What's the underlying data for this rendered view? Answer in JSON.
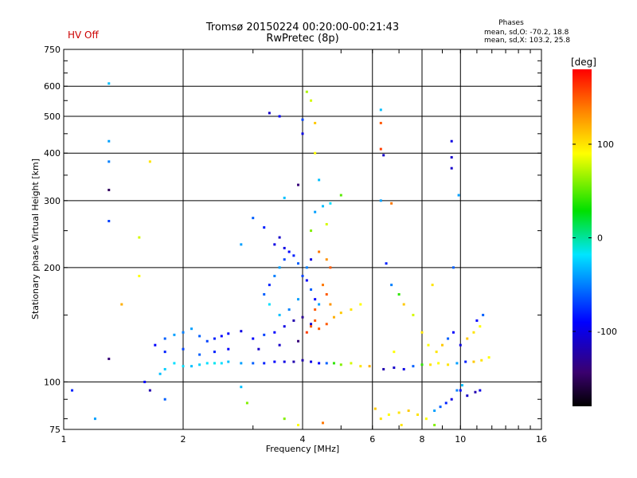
{
  "status": {
    "hv_label": "HV Off",
    "hv_color": "#cc0000"
  },
  "header": {
    "title_line1": "Tromsø 20150224 00:20:00-00:21:43",
    "title_line2": "RwPretec (8p)"
  },
  "phases_box": {
    "title": "Phases",
    "line_o": "mean, sd,O: -70.2, 18.8",
    "line_x": "mean, sd,X: 103.2, 25.8"
  },
  "chart_data": {
    "type": "scatter",
    "xlabel": "Frequency [MHz]",
    "ylabel": "Stationary phase Virtual Height [km]",
    "x_scale": "log",
    "y_scale": "log",
    "xlim": [
      1,
      16
    ],
    "ylim": [
      75,
      750
    ],
    "x_ticks": [
      1,
      2,
      4,
      6,
      8,
      10,
      16
    ],
    "y_ticks": [
      75,
      100,
      200,
      300,
      400,
      500,
      600,
      750
    ],
    "grid": true,
    "colorbar": {
      "label": "[deg]",
      "range": [
        -180,
        180
      ],
      "ticks": [
        100,
        0,
        -100
      ],
      "colormap": "rainbow"
    },
    "series": [
      {
        "points": [
          [
            1.05,
            95,
            -80
          ],
          [
            1.2,
            80,
            -40
          ],
          [
            1.3,
            115,
            -140
          ],
          [
            1.6,
            100,
            -90
          ],
          [
            1.65,
            95,
            -120
          ],
          [
            1.75,
            105,
            -30
          ],
          [
            1.8,
            108,
            -25
          ],
          [
            1.9,
            112,
            -20
          ],
          [
            2.0,
            110,
            -20
          ],
          [
            2.1,
            110,
            -30
          ],
          [
            2.2,
            111,
            -25
          ],
          [
            2.3,
            112,
            -20
          ],
          [
            2.4,
            112,
            -15
          ],
          [
            2.5,
            112,
            -20
          ],
          [
            2.6,
            113,
            -30
          ],
          [
            2.8,
            112,
            -40
          ],
          [
            3.0,
            112,
            -60
          ],
          [
            3.2,
            112,
            -80
          ],
          [
            3.4,
            113,
            -90
          ],
          [
            3.6,
            113,
            -100
          ],
          [
            3.8,
            113,
            -120
          ],
          [
            4.0,
            114,
            -120
          ],
          [
            4.2,
            113,
            -100
          ],
          [
            4.4,
            112,
            -90
          ],
          [
            4.6,
            112,
            -60
          ],
          [
            4.8,
            112,
            40
          ],
          [
            5.0,
            111,
            60
          ],
          [
            5.3,
            112,
            80
          ],
          [
            5.6,
            110,
            100
          ],
          [
            5.9,
            110,
            120
          ],
          [
            6.4,
            108,
            -120
          ],
          [
            6.8,
            109,
            -110
          ],
          [
            7.2,
            108,
            -100
          ],
          [
            7.6,
            110,
            -60
          ],
          [
            8.0,
            111,
            40
          ],
          [
            8.4,
            111,
            100
          ],
          [
            8.8,
            112,
            90
          ],
          [
            9.3,
            111,
            100
          ],
          [
            9.8,
            112,
            -40
          ],
          [
            10.3,
            113,
            -80
          ],
          [
            10.8,
            113,
            110
          ],
          [
            11.3,
            114,
            100
          ],
          [
            11.8,
            116,
            90
          ],
          [
            1.7,
            125,
            -90
          ],
          [
            1.8,
            130,
            -60
          ],
          [
            1.9,
            133,
            -40
          ],
          [
            2.0,
            135,
            -50
          ],
          [
            2.1,
            138,
            -40
          ],
          [
            2.2,
            132,
            -60
          ],
          [
            2.3,
            128,
            -70
          ],
          [
            2.4,
            130,
            -80
          ],
          [
            2.5,
            132,
            -90
          ],
          [
            2.6,
            134,
            -90
          ],
          [
            2.8,
            136,
            -100
          ],
          [
            3.0,
            130,
            -90
          ],
          [
            3.2,
            133,
            -70
          ],
          [
            3.4,
            135,
            -90
          ],
          [
            3.6,
            140,
            -100
          ],
          [
            3.8,
            145,
            -120
          ],
          [
            4.0,
            148,
            -130
          ],
          [
            4.2,
            142,
            -110
          ],
          [
            4.4,
            138,
            150
          ],
          [
            4.6,
            142,
            150
          ],
          [
            4.8,
            148,
            120
          ],
          [
            5.0,
            152,
            110
          ],
          [
            5.3,
            155,
            100
          ],
          [
            5.6,
            160,
            90
          ],
          [
            1.8,
            120,
            -80
          ],
          [
            2.0,
            122,
            -70
          ],
          [
            2.2,
            118,
            -60
          ],
          [
            2.4,
            120,
            -80
          ],
          [
            2.6,
            122,
            -90
          ],
          [
            3.1,
            122,
            -110
          ],
          [
            3.5,
            125,
            -110
          ],
          [
            3.9,
            128,
            -140
          ],
          [
            3.2,
            170,
            -60
          ],
          [
            3.3,
            180,
            -80
          ],
          [
            3.4,
            190,
            -50
          ],
          [
            3.5,
            200,
            -40
          ],
          [
            3.6,
            210,
            -70
          ],
          [
            3.7,
            220,
            -90
          ],
          [
            3.4,
            230,
            -100
          ],
          [
            3.5,
            240,
            -110
          ],
          [
            3.6,
            225,
            -100
          ],
          [
            3.8,
            215,
            -80
          ],
          [
            3.9,
            205,
            -60
          ],
          [
            4.0,
            190,
            -70
          ],
          [
            4.1,
            185,
            -90
          ],
          [
            4.2,
            175,
            -60
          ],
          [
            4.3,
            165,
            -90
          ],
          [
            4.4,
            160,
            -40
          ],
          [
            3.3,
            160,
            -20
          ],
          [
            3.5,
            150,
            -30
          ],
          [
            3.7,
            155,
            -50
          ],
          [
            3.9,
            165,
            -40
          ],
          [
            4.1,
            200,
            -50
          ],
          [
            4.2,
            210,
            -100
          ],
          [
            4.4,
            220,
            140
          ],
          [
            4.6,
            210,
            130
          ],
          [
            4.7,
            200,
            150
          ],
          [
            4.5,
            180,
            140
          ],
          [
            4.6,
            170,
            150
          ],
          [
            4.7,
            160,
            130
          ],
          [
            4.3,
            155,
            150
          ],
          [
            4.1,
            135,
            160
          ],
          [
            4.2,
            140,
            150
          ],
          [
            4.3,
            145,
            150
          ],
          [
            4.3,
            280,
            -40
          ],
          [
            4.5,
            290,
            -30
          ],
          [
            4.7,
            295,
            -20
          ],
          [
            4.2,
            250,
            60
          ],
          [
            4.6,
            260,
            80
          ],
          [
            5.0,
            310,
            50
          ],
          [
            4.3,
            400,
            90
          ],
          [
            4.3,
            480,
            110
          ],
          [
            4.2,
            550,
            80
          ],
          [
            4.1,
            580,
            70
          ],
          [
            3.3,
            510,
            -110
          ],
          [
            3.5,
            500,
            -90
          ],
          [
            4.0,
            450,
            -100
          ],
          [
            4.0,
            490,
            -70
          ],
          [
            3.9,
            330,
            -140
          ],
          [
            3.6,
            305,
            -30
          ],
          [
            4.4,
            340,
            -30
          ],
          [
            2.8,
            230,
            -40
          ],
          [
            3.2,
            255,
            -80
          ],
          [
            3.0,
            270,
            -60
          ],
          [
            1.3,
            610,
            -30
          ],
          [
            1.3,
            430,
            -40
          ],
          [
            1.3,
            380,
            -50
          ],
          [
            1.3,
            320,
            -150
          ],
          [
            1.3,
            265,
            -70
          ],
          [
            1.4,
            160,
            120
          ],
          [
            1.55,
            240,
            80
          ],
          [
            1.55,
            190,
            90
          ],
          [
            1.65,
            380,
            100
          ],
          [
            6.3,
            520,
            -30
          ],
          [
            6.3,
            480,
            150
          ],
          [
            6.3,
            410,
            160
          ],
          [
            6.4,
            395,
            -110
          ],
          [
            6.7,
            295,
            140
          ],
          [
            6.3,
            300,
            -40
          ],
          [
            6.5,
            205,
            -80
          ],
          [
            6.7,
            180,
            -50
          ],
          [
            7.0,
            170,
            40
          ],
          [
            7.6,
            150,
            80
          ],
          [
            8.0,
            135,
            100
          ],
          [
            8.3,
            125,
            90
          ],
          [
            8.7,
            120,
            100
          ],
          [
            9.0,
            125,
            110
          ],
          [
            9.3,
            130,
            -60
          ],
          [
            9.6,
            135,
            -90
          ],
          [
            10.0,
            125,
            -100
          ],
          [
            10.4,
            130,
            110
          ],
          [
            10.8,
            135,
            100
          ],
          [
            11.2,
            140,
            90
          ],
          [
            11.4,
            150,
            -60
          ],
          [
            11.0,
            145,
            -90
          ],
          [
            9.6,
            200,
            -60
          ],
          [
            9.5,
            365,
            -110
          ],
          [
            9.5,
            390,
            -110
          ],
          [
            9.5,
            430,
            -100
          ],
          [
            9.9,
            310,
            -40
          ],
          [
            8.5,
            180,
            100
          ],
          [
            7.2,
            160,
            110
          ],
          [
            6.8,
            120,
            90
          ],
          [
            10.0,
            95,
            -90
          ],
          [
            10.4,
            92,
            -110
          ],
          [
            10.9,
            94,
            -120
          ],
          [
            11.2,
            95,
            -100
          ],
          [
            6.1,
            85,
            110
          ],
          [
            6.3,
            80,
            100
          ],
          [
            6.6,
            82,
            90
          ],
          [
            7.0,
            83,
            100
          ],
          [
            7.4,
            84,
            110
          ],
          [
            7.8,
            82,
            100
          ],
          [
            8.2,
            80,
            90
          ],
          [
            8.6,
            84,
            -40
          ],
          [
            8.9,
            86,
            -60
          ],
          [
            9.2,
            88,
            -80
          ],
          [
            9.5,
            90,
            -100
          ],
          [
            9.8,
            95,
            -50
          ],
          [
            10.1,
            98,
            -30
          ],
          [
            7.1,
            77,
            100
          ],
          [
            8.6,
            77,
            60
          ],
          [
            1.8,
            90,
            -60
          ],
          [
            2.9,
            88,
            60
          ],
          [
            3.6,
            80,
            60
          ],
          [
            4.5,
            78,
            140
          ],
          [
            3.9,
            77,
            90
          ],
          [
            2.8,
            97,
            -30
          ]
        ]
      }
    ]
  }
}
